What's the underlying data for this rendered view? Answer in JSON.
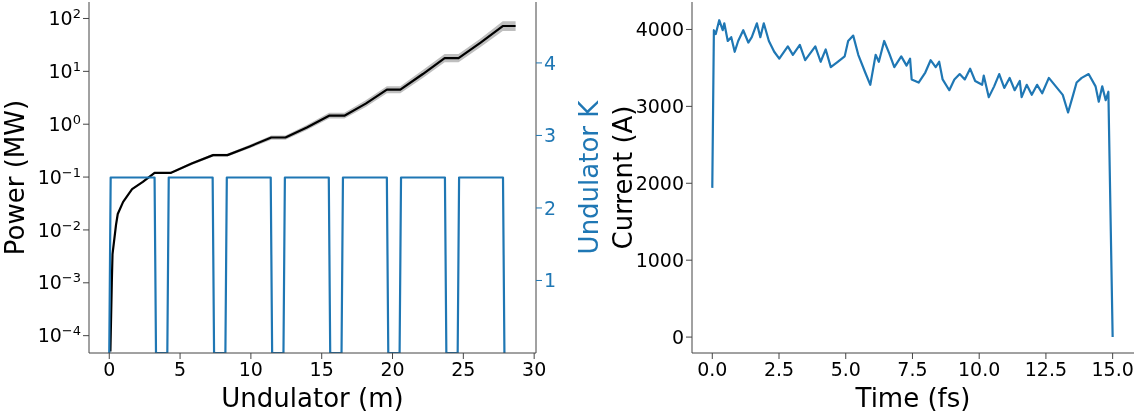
{
  "chart_data": [
    {
      "type": "line",
      "xlabel": "Undulator (m)",
      "ylabel": "Power (MW)",
      "y2label": "Undulator K",
      "log": "y",
      "xlim": [
        -1.43,
        30.13
      ],
      "xticks": [
        0,
        5,
        10,
        15,
        20,
        25,
        30
      ],
      "ylim": [
        4.7e-05,
        205
      ],
      "yticks": [
        {
          "value": 0.0001,
          "label": "10$^{−4}$"
        },
        {
          "value": 0.001,
          "label": "10$^{−3}$"
        },
        {
          "value": 0.01,
          "label": "10$^{−2}$"
        },
        {
          "value": 0.1,
          "label": "10$^{−1}$"
        },
        {
          "value": 1,
          "label": "10$^{0}$"
        },
        {
          "value": 10,
          "label": "10$^{1}$"
        },
        {
          "value": 100,
          "label": "10$^{2}$"
        }
      ],
      "y2lim": [
        0,
        4.84
      ],
      "y2ticks": [
        1,
        2,
        3,
        4
      ],
      "series": [
        {
          "color": "#000000",
          "x": [
            0.08,
            0.18,
            0.23,
            0.48,
            0.6,
            0.98,
            1.61,
            2.37,
            3.2,
            3.38,
            4.33,
            5.82,
            7.33,
            8.34,
            9.92,
            11.44,
            12.44,
            13.95,
            15.52,
            16.6,
            18.11,
            19.6,
            20.55,
            22.14,
            23.68,
            24.66,
            26.22,
            27.78,
            28.69
          ],
          "values": [
            5e-05,
            0.001,
            0.0035,
            0.0126,
            0.02,
            0.034,
            0.059,
            0.081,
            0.12,
            0.12,
            0.12,
            0.18,
            0.26,
            0.26,
            0.38,
            0.56,
            0.56,
            0.87,
            1.45,
            1.45,
            2.45,
            4.5,
            4.5,
            8.9,
            17.8,
            17.8,
            35,
            72,
            72
          ],
          "lower": [
            5e-05,
            0.00097,
            0.0034,
            0.0122,
            0.0194,
            0.033,
            0.057,
            0.078,
            0.115,
            0.115,
            0.115,
            0.17,
            0.245,
            0.245,
            0.35,
            0.51,
            0.51,
            0.78,
            1.28,
            1.28,
            2.12,
            3.85,
            3.85,
            7.5,
            14.8,
            14.8,
            29,
            58,
            58
          ],
          "upper": [
            5e-05,
            0.00103,
            0.0036,
            0.013,
            0.0206,
            0.035,
            0.061,
            0.084,
            0.125,
            0.125,
            0.125,
            0.19,
            0.275,
            0.275,
            0.41,
            0.61,
            0.61,
            0.97,
            1.64,
            1.64,
            2.83,
            5.25,
            5.25,
            10.6,
            21.4,
            21.4,
            42,
            89,
            89
          ]
        },
        {
          "axis": "y2",
          "color": "#1f77b4",
          "x": [
            0,
            0.1,
            3.2,
            3.3,
            4.1,
            4.2,
            7.3,
            7.4,
            8.2,
            8.3,
            11.4,
            11.5,
            12.3,
            12.4,
            15.5,
            15.6,
            16.4,
            16.5,
            19.6,
            19.7,
            20.5,
            20.6,
            23.7,
            23.8,
            24.6,
            24.7,
            27.8,
            27.9
          ],
          "values": [
            0,
            2.42,
            2.42,
            0,
            0,
            2.42,
            2.42,
            0,
            0,
            2.42,
            2.42,
            0,
            0,
            2.42,
            2.42,
            0,
            0,
            2.42,
            2.42,
            0,
            0,
            2.42,
            2.42,
            0,
            0,
            2.42,
            2.42,
            0
          ]
        }
      ]
    },
    {
      "type": "line",
      "xlabel": "Time (fs)",
      "ylabel": "Current (A)",
      "xlim": [
        -0.76,
        15.8
      ],
      "xticks": [
        {
          "value": 0,
          "label": "0.0"
        },
        {
          "value": 2.5,
          "label": "2.5"
        },
        {
          "value": 5,
          "label": "5.0"
        },
        {
          "value": 7.5,
          "label": "7.5"
        },
        {
          "value": 10,
          "label": "10.0"
        },
        {
          "value": 12.5,
          "label": "12.5"
        },
        {
          "value": 15,
          "label": "15.0"
        }
      ],
      "ylim": [
        -207,
        4357
      ],
      "yticks": [
        0,
        1000,
        2000,
        3000,
        4000
      ],
      "series": [
        {
          "color": "#1f77b4",
          "x": [
            0,
            0.06,
            0.13,
            0.26,
            0.39,
            0.45,
            0.58,
            0.71,
            0.84,
            0.97,
            1.16,
            1.35,
            1.48,
            1.67,
            1.8,
            1.93,
            2.12,
            2.32,
            2.51,
            2.83,
            3.02,
            3.28,
            3.48,
            3.86,
            4.06,
            4.25,
            4.44,
            4.7,
            4.96,
            5.09,
            5.28,
            5.47,
            5.73,
            5.92,
            6.12,
            6.24,
            6.44,
            6.63,
            6.82,
            7.08,
            7.28,
            7.41,
            7.47,
            7.73,
            7.98,
            8.18,
            8.37,
            8.5,
            8.63,
            8.88,
            9.07,
            9.27,
            9.46,
            9.66,
            9.85,
            10.11,
            10.17,
            10.36,
            10.56,
            10.75,
            10.94,
            11.14,
            11.33,
            11.52,
            11.59,
            11.78,
            11.97,
            12.17,
            12.36,
            12.61,
            12.87,
            13.13,
            13.33,
            13.52,
            13.65,
            13.84,
            14.1,
            14.36,
            14.48,
            14.61,
            14.74,
            14.84,
            15.0
          ],
          "values": [
            1940,
            3990,
            3940,
            4120,
            3990,
            4080,
            3850,
            3900,
            3710,
            3850,
            3990,
            3830,
            3900,
            4080,
            3900,
            4080,
            3850,
            3710,
            3620,
            3780,
            3670,
            3800,
            3600,
            3780,
            3580,
            3740,
            3510,
            3580,
            3650,
            3850,
            3920,
            3670,
            3440,
            3280,
            3670,
            3580,
            3850,
            3690,
            3510,
            3650,
            3530,
            3620,
            3350,
            3310,
            3440,
            3600,
            3510,
            3580,
            3350,
            3210,
            3350,
            3420,
            3350,
            3490,
            3330,
            3280,
            3400,
            3120,
            3260,
            3420,
            3240,
            3370,
            3210,
            3330,
            3120,
            3280,
            3150,
            3280,
            3170,
            3370,
            3260,
            3150,
            2920,
            3150,
            3310,
            3370,
            3420,
            3260,
            3060,
            3260,
            3080,
            3190,
            0
          ]
        }
      ]
    }
  ]
}
